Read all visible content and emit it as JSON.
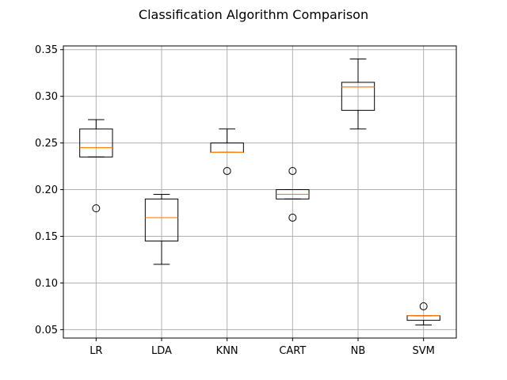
{
  "chart_data": {
    "type": "box",
    "title": "Classification Algorithm Comparison",
    "xlabel": "",
    "ylabel": "",
    "categories": [
      "LR",
      "LDA",
      "KNN",
      "CART",
      "NB",
      "SVM"
    ],
    "ylim": [
      0.041,
      0.354
    ],
    "yticks": [
      0.05,
      0.1,
      0.15,
      0.2,
      0.25,
      0.3,
      0.35
    ],
    "ytick_labels": [
      "0.05",
      "0.10",
      "0.15",
      "0.20",
      "0.25",
      "0.30",
      "0.35"
    ],
    "grid": true,
    "boxes": [
      {
        "name": "LR",
        "whisker_low": 0.235,
        "q1": 0.235,
        "median": 0.245,
        "q3": 0.265,
        "whisker_high": 0.275,
        "outliers": [
          0.18
        ]
      },
      {
        "name": "LDA",
        "whisker_low": 0.12,
        "q1": 0.145,
        "median": 0.17,
        "q3": 0.19,
        "whisker_high": 0.195,
        "outliers": []
      },
      {
        "name": "KNN",
        "whisker_low": 0.24,
        "q1": 0.24,
        "median": 0.24,
        "q3": 0.25,
        "whisker_high": 0.265,
        "outliers": [
          0.22
        ]
      },
      {
        "name": "CART",
        "whisker_low": 0.19,
        "q1": 0.19,
        "median": 0.195,
        "q3": 0.2,
        "whisker_high": 0.2,
        "outliers": [
          0.22,
          0.17
        ]
      },
      {
        "name": "NB",
        "whisker_low": 0.265,
        "q1": 0.285,
        "median": 0.31,
        "q3": 0.315,
        "whisker_high": 0.34,
        "outliers": []
      },
      {
        "name": "SVM",
        "whisker_low": 0.055,
        "q1": 0.06,
        "median": 0.065,
        "q3": 0.065,
        "whisker_high": 0.065,
        "outliers": [
          0.075
        ]
      }
    ],
    "colors": {
      "box": "#000000",
      "median": "#ff7f0e",
      "grid": "#b0b0b0",
      "axis": "#000000"
    }
  }
}
